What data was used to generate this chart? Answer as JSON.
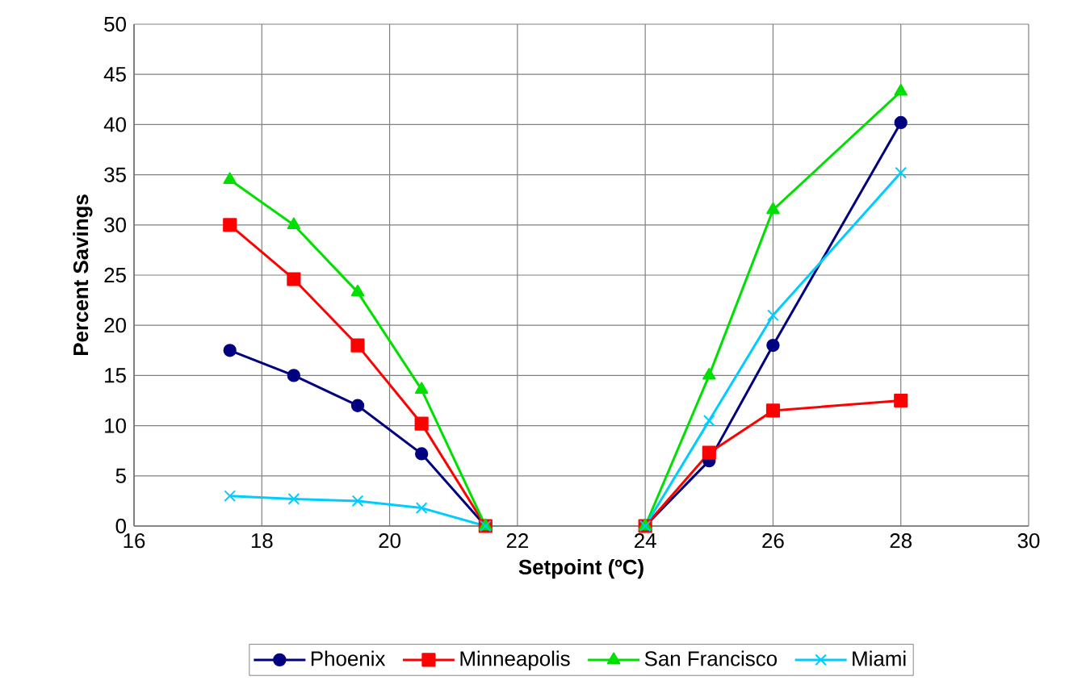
{
  "chart_data": {
    "type": "line",
    "xlabel": "Setpoint (ºC)",
    "ylabel": "Percent Savings",
    "x": [
      17.5,
      18.5,
      19.5,
      20.5,
      21.5,
      23,
      24,
      25,
      26,
      28
    ],
    "series": [
      {
        "name": "Phoenix",
        "color": "#000080",
        "marker": "circle",
        "values": [
          17.5,
          15,
          12,
          7.2,
          0,
          null,
          0,
          6.5,
          18,
          40.2
        ]
      },
      {
        "name": "Minneapolis",
        "color": "#ff0000",
        "marker": "square",
        "values": [
          30,
          24.6,
          18,
          10.2,
          0,
          null,
          0,
          7.3,
          11.5,
          12.5
        ]
      },
      {
        "name": "San Francisco",
        "color": "#00e000",
        "marker": "triangle",
        "values": [
          34.5,
          30,
          23.3,
          13.6,
          0,
          null,
          0,
          15,
          31.5,
          43.3
        ]
      },
      {
        "name": "Miami",
        "color": "#00ccff",
        "marker": "cross",
        "values": [
          3,
          2.7,
          2.5,
          1.8,
          0,
          null,
          0,
          10.5,
          21,
          35.2
        ]
      }
    ],
    "xlim": [
      16,
      30
    ],
    "xticks": [
      16,
      18,
      20,
      22,
      24,
      26,
      28,
      30
    ],
    "ylim": [
      0,
      50
    ],
    "yticks": [
      0,
      5,
      10,
      15,
      20,
      25,
      30,
      35,
      40,
      45,
      50
    ],
    "grid": true,
    "legend": "bottom",
    "line_style": "solid"
  }
}
